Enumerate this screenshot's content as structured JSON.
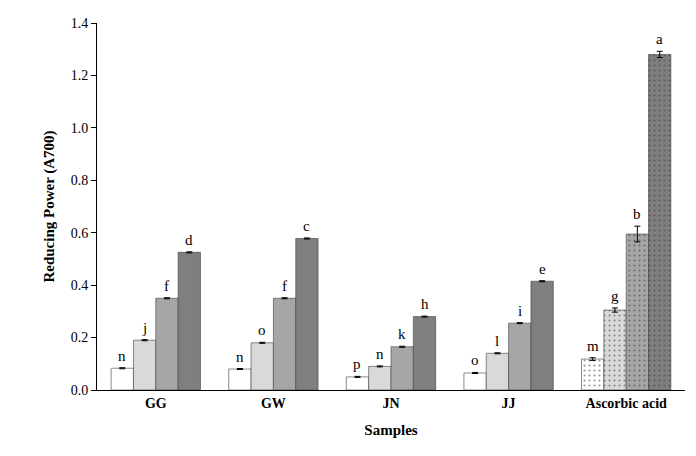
{
  "chart_data": {
    "type": "bar",
    "x_label": "Samples",
    "y_label": "Reducing Power (A700)",
    "categories": [
      "GG",
      "GW",
      "JN",
      "JJ",
      "Ascorbic acid"
    ],
    "series": [
      {
        "color": "#ffffff",
        "values": [
          0.083,
          0.08,
          0.05,
          0.065,
          0.118
        ],
        "errors": [
          0.002,
          0.002,
          0.002,
          0.002,
          0.005
        ],
        "annotations": [
          "n",
          "n",
          "p",
          "o",
          "m"
        ]
      },
      {
        "color": "#d9d9d9",
        "values": [
          0.19,
          0.18,
          0.09,
          0.14,
          0.305
        ],
        "errors": [
          0.002,
          0.002,
          0.002,
          0.002,
          0.008
        ],
        "annotations": [
          "j",
          "o",
          "n",
          "l",
          "g"
        ]
      },
      {
        "color": "#a6a6a6",
        "values": [
          0.35,
          0.35,
          0.165,
          0.255,
          0.595
        ],
        "errors": [
          0.002,
          0.002,
          0.002,
          0.002,
          0.03
        ],
        "annotations": [
          "f",
          "f",
          "k",
          "i",
          "b"
        ]
      },
      {
        "color": "#7f7f7f",
        "values": [
          0.525,
          0.578,
          0.28,
          0.415,
          1.28
        ],
        "errors": [
          0.002,
          0.002,
          0.002,
          0.002,
          0.012
        ],
        "annotations": [
          "d",
          "c",
          "h",
          "e",
          "a"
        ]
      }
    ],
    "ylim": [
      0,
      1.4
    ],
    "yticks": [
      {
        "value": 0,
        "label": "0.0"
      },
      0.2,
      0.4,
      0.6,
      0.8,
      {
        "value": 1,
        "label": "1.0"
      },
      1.2,
      1.4
    ],
    "grid": false
  }
}
